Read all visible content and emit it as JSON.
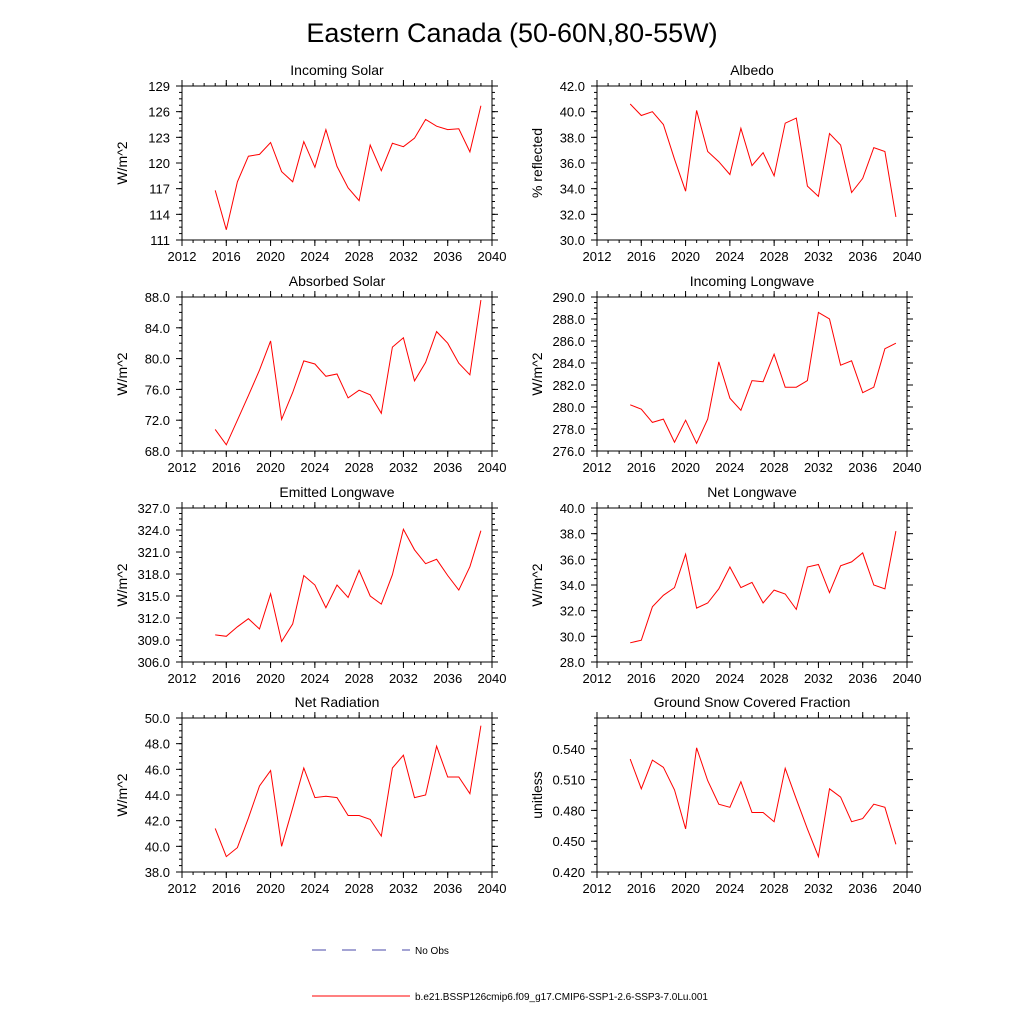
{
  "figure_title": "Eastern Canada (50-60N,80-55W)",
  "legend": {
    "obs_label": "No Obs",
    "model_label": "b.e21.BSSP126cmip6.f09_g17.CMIP6-SSP1-2.6-SSP3-7.0Lu.001",
    "obs_color": "#4a4aa8",
    "model_color": "#ff0000"
  },
  "chart_data": [
    {
      "type": "line",
      "title": "Incoming Solar",
      "ylabel": "W/m^2",
      "xlim": [
        2012,
        2040
      ],
      "ylim": [
        111,
        129
      ],
      "xticks": [
        2012,
        2016,
        2020,
        2024,
        2028,
        2032,
        2036,
        2040
      ],
      "yticks": [
        "111",
        "114",
        "117",
        "120",
        "123",
        "126",
        "129"
      ],
      "x": [
        2015,
        2016,
        2017,
        2018,
        2019,
        2020,
        2021,
        2022,
        2023,
        2024,
        2025,
        2026,
        2027,
        2028,
        2029,
        2030,
        2031,
        2032,
        2033,
        2034,
        2035,
        2036,
        2037,
        2038,
        2039
      ],
      "series": [
        {
          "values": [
            116.8,
            112.2,
            117.8,
            120.8,
            121.0,
            122.4,
            119.0,
            117.8,
            122.5,
            119.5,
            123.9,
            119.6,
            117.1,
            115.6,
            122.1,
            119.1,
            122.3,
            121.9,
            122.9,
            125.1,
            124.3,
            123.9,
            124.0,
            121.3,
            126.7
          ]
        }
      ],
      "grid": false
    },
    {
      "type": "line",
      "title": "Albedo",
      "ylabel": "% reflected",
      "xlim": [
        2012,
        2040
      ],
      "ylim": [
        30,
        42
      ],
      "xticks": [
        2012,
        2016,
        2020,
        2024,
        2028,
        2032,
        2036,
        2040
      ],
      "yticks": [
        "30.0",
        "32.0",
        "34.0",
        "36.0",
        "38.0",
        "40.0",
        "42.0"
      ],
      "x": [
        2015,
        2016,
        2017,
        2018,
        2019,
        2020,
        2021,
        2022,
        2023,
        2024,
        2025,
        2026,
        2027,
        2028,
        2029,
        2030,
        2031,
        2032,
        2033,
        2034,
        2035,
        2036,
        2037,
        2038,
        2039
      ],
      "series": [
        {
          "values": [
            40.6,
            39.7,
            40.0,
            39.0,
            36.3,
            33.8,
            40.1,
            36.9,
            36.1,
            35.1,
            38.7,
            35.8,
            36.8,
            35.0,
            39.1,
            39.5,
            34.2,
            33.4,
            38.3,
            37.4,
            33.7,
            34.8,
            37.2,
            36.9,
            31.8
          ]
        }
      ],
      "grid": false
    },
    {
      "type": "line",
      "title": "Absorbed Solar",
      "ylabel": "W/m^2",
      "xlim": [
        2012,
        2040
      ],
      "ylim": [
        68,
        88
      ],
      "xticks": [
        2012,
        2016,
        2020,
        2024,
        2028,
        2032,
        2036,
        2040
      ],
      "yticks": [
        "68.0",
        "72.0",
        "76.0",
        "80.0",
        "84.0",
        "88.0"
      ],
      "x": [
        2015,
        2016,
        2017,
        2018,
        2019,
        2020,
        2021,
        2022,
        2023,
        2024,
        2025,
        2026,
        2027,
        2028,
        2029,
        2030,
        2031,
        2032,
        2033,
        2034,
        2035,
        2036,
        2037,
        2038,
        2039
      ],
      "series": [
        {
          "values": [
            70.8,
            68.8,
            72.0,
            75.2,
            78.5,
            82.3,
            72.1,
            75.6,
            79.7,
            79.3,
            77.7,
            78.0,
            74.9,
            75.9,
            75.3,
            72.9,
            81.5,
            82.7,
            77.1,
            79.5,
            83.5,
            82.0,
            79.4,
            77.9,
            87.6
          ]
        }
      ],
      "grid": false
    },
    {
      "type": "line",
      "title": "Incoming Longwave",
      "ylabel": "W/m^2",
      "xlim": [
        2012,
        2040
      ],
      "ylim": [
        276,
        290
      ],
      "xticks": [
        2012,
        2016,
        2020,
        2024,
        2028,
        2032,
        2036,
        2040
      ],
      "yticks": [
        "276.0",
        "278.0",
        "280.0",
        "282.0",
        "284.0",
        "286.0",
        "288.0",
        "290.0"
      ],
      "x": [
        2015,
        2016,
        2017,
        2018,
        2019,
        2020,
        2021,
        2022,
        2023,
        2024,
        2025,
        2026,
        2027,
        2028,
        2029,
        2030,
        2031,
        2032,
        2033,
        2034,
        2035,
        2036,
        2037,
        2038,
        2039
      ],
      "series": [
        {
          "values": [
            280.2,
            279.8,
            278.6,
            278.9,
            276.8,
            278.8,
            276.7,
            278.9,
            284.1,
            280.8,
            279.7,
            282.4,
            282.3,
            284.8,
            281.8,
            281.8,
            282.4,
            288.6,
            288.0,
            283.8,
            284.2,
            281.3,
            281.8,
            285.3,
            285.8
          ]
        }
      ],
      "grid": false
    },
    {
      "type": "line",
      "title": "Emitted Longwave",
      "ylabel": "W/m^2",
      "xlim": [
        2012,
        2040
      ],
      "ylim": [
        306,
        327
      ],
      "xticks": [
        2012,
        2016,
        2020,
        2024,
        2028,
        2032,
        2036,
        2040
      ],
      "yticks": [
        "306.0",
        "309.0",
        "312.0",
        "315.0",
        "318.0",
        "321.0",
        "324.0",
        "327.0"
      ],
      "x": [
        2015,
        2016,
        2017,
        2018,
        2019,
        2020,
        2021,
        2022,
        2023,
        2024,
        2025,
        2026,
        2027,
        2028,
        2029,
        2030,
        2031,
        2032,
        2033,
        2034,
        2035,
        2036,
        2037,
        2038,
        2039
      ],
      "series": [
        {
          "values": [
            309.7,
            309.5,
            310.8,
            311.9,
            310.5,
            315.3,
            308.8,
            311.2,
            317.8,
            316.5,
            313.4,
            316.5,
            314.8,
            318.5,
            315.0,
            313.9,
            317.9,
            324.1,
            321.3,
            319.4,
            320.0,
            317.8,
            315.8,
            319.0,
            323.9
          ]
        }
      ],
      "grid": false
    },
    {
      "type": "line",
      "title": "Net Longwave",
      "ylabel": "W/m^2",
      "xlim": [
        2012,
        2040
      ],
      "ylim": [
        28,
        40
      ],
      "xticks": [
        2012,
        2016,
        2020,
        2024,
        2028,
        2032,
        2036,
        2040
      ],
      "yticks": [
        "28.0",
        "30.0",
        "32.0",
        "34.0",
        "36.0",
        "38.0",
        "40.0"
      ],
      "x": [
        2015,
        2016,
        2017,
        2018,
        2019,
        2020,
        2021,
        2022,
        2023,
        2024,
        2025,
        2026,
        2027,
        2028,
        2029,
        2030,
        2031,
        2032,
        2033,
        2034,
        2035,
        2036,
        2037,
        2038,
        2039
      ],
      "series": [
        {
          "values": [
            29.5,
            29.7,
            32.3,
            33.2,
            33.8,
            36.4,
            32.2,
            32.6,
            33.7,
            35.4,
            33.8,
            34.2,
            32.6,
            33.6,
            33.3,
            32.1,
            35.4,
            35.6,
            33.4,
            35.5,
            35.8,
            36.5,
            34.0,
            33.7,
            38.2
          ]
        }
      ],
      "grid": false
    },
    {
      "type": "line",
      "title": "Net Radiation",
      "ylabel": "W/m^2",
      "xlim": [
        2012,
        2040
      ],
      "ylim": [
        38,
        50
      ],
      "xticks": [
        2012,
        2016,
        2020,
        2024,
        2028,
        2032,
        2036,
        2040
      ],
      "yticks": [
        "38.0",
        "40.0",
        "42.0",
        "44.0",
        "46.0",
        "48.0",
        "50.0"
      ],
      "x": [
        2015,
        2016,
        2017,
        2018,
        2019,
        2020,
        2021,
        2022,
        2023,
        2024,
        2025,
        2026,
        2027,
        2028,
        2029,
        2030,
        2031,
        2032,
        2033,
        2034,
        2035,
        2036,
        2037,
        2038,
        2039
      ],
      "series": [
        {
          "values": [
            41.4,
            39.2,
            39.9,
            42.2,
            44.7,
            45.9,
            40.0,
            43.0,
            46.1,
            43.8,
            43.9,
            43.8,
            42.4,
            42.4,
            42.1,
            40.8,
            46.1,
            47.1,
            43.8,
            44.0,
            47.8,
            45.4,
            45.4,
            44.1,
            49.4
          ]
        }
      ],
      "grid": false
    },
    {
      "type": "line",
      "title": "Ground Snow Covered Fraction",
      "ylabel": "unitless",
      "xlim": [
        2012,
        2040
      ],
      "ylim": [
        0.42,
        0.57
      ],
      "xticks": [
        2012,
        2016,
        2020,
        2024,
        2028,
        2032,
        2036,
        2040
      ],
      "yticks": [
        "0.420",
        "0.450",
        "0.480",
        "0.510",
        "0.540"
      ],
      "x": [
        2015,
        2016,
        2017,
        2018,
        2019,
        2020,
        2021,
        2022,
        2023,
        2024,
        2025,
        2026,
        2027,
        2028,
        2029,
        2030,
        2031,
        2032,
        2033,
        2034,
        2035,
        2036,
        2037,
        2038,
        2039
      ],
      "series": [
        {
          "values": [
            0.53,
            0.501,
            0.529,
            0.522,
            0.5,
            0.462,
            0.541,
            0.509,
            0.486,
            0.483,
            0.508,
            0.478,
            0.478,
            0.469,
            0.521,
            0.491,
            0.462,
            0.435,
            0.501,
            0.493,
            0.469,
            0.472,
            0.486,
            0.483,
            0.447
          ]
        }
      ],
      "grid": false
    }
  ]
}
